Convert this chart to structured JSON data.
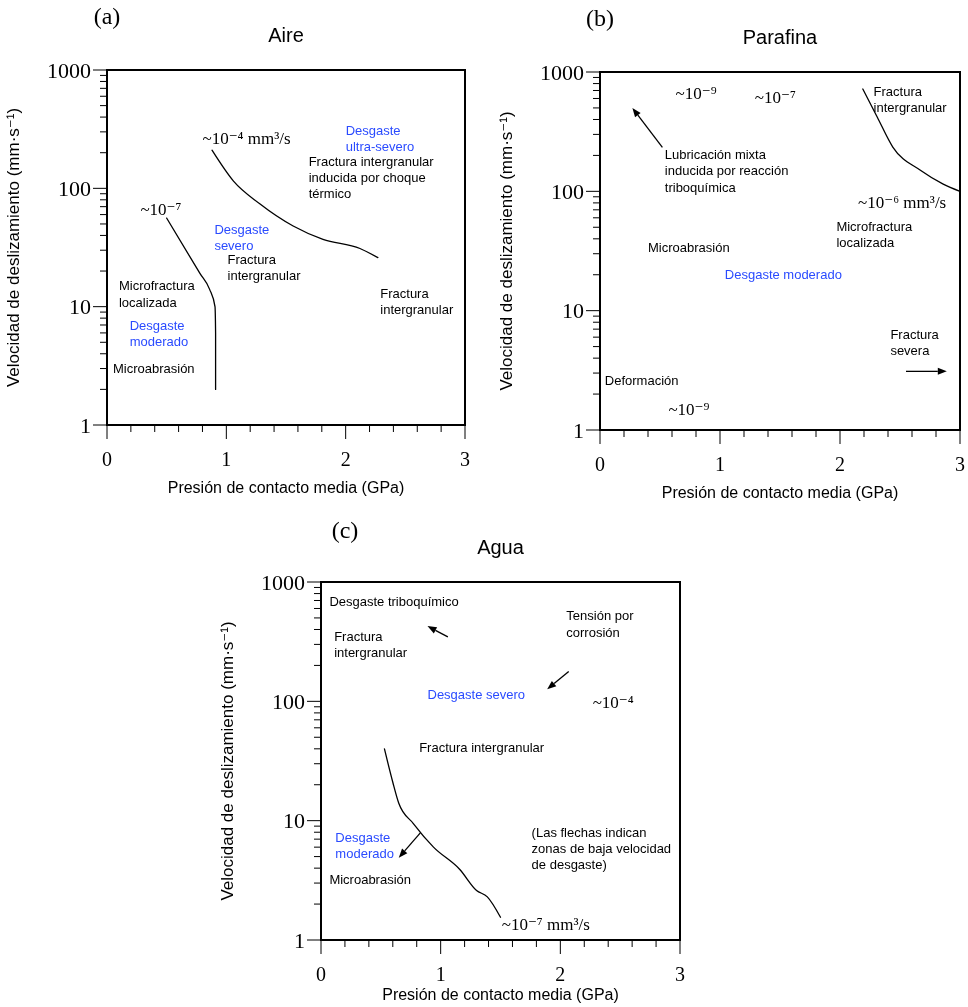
{
  "chart_data": [
    {
      "type": "line",
      "title": "Aire",
      "xlabel": "Presión de contacto media (GPa)",
      "ylabel": "Velocidad de deslizamiento (mm·s⁻¹)",
      "log": "y",
      "xlim": [
        0,
        3
      ],
      "ylim": [
        1,
        1000
      ],
      "xticks": [
        0,
        {
          "value": 0.2,
          "label": null
        },
        {
          "value": 0.4,
          "label": null
        },
        {
          "value": 0.6,
          "label": null
        },
        {
          "value": 0.8,
          "label": null
        },
        1,
        {
          "value": 1.2,
          "label": null
        },
        {
          "value": 1.4,
          "label": null
        },
        {
          "value": 1.6,
          "label": null
        },
        {
          "value": 1.8,
          "label": null
        },
        2,
        {
          "value": 2.2,
          "label": null
        },
        {
          "value": 2.4,
          "label": null
        },
        {
          "value": 2.6,
          "label": null
        },
        {
          "value": 2.8,
          "label": null
        },
        3
      ],
      "yticks": [
        1,
        {
          "value": 2,
          "label": null
        },
        {
          "value": 3,
          "label": null
        },
        {
          "value": 4,
          "label": null
        },
        {
          "value": 5,
          "label": null
        },
        {
          "value": 6,
          "label": null
        },
        {
          "value": 7,
          "label": null
        },
        {
          "value": 8,
          "label": null
        },
        {
          "value": 9,
          "label": null
        },
        10,
        {
          "value": 20,
          "label": null
        },
        {
          "value": 30,
          "label": null
        },
        {
          "value": 40,
          "label": null
        },
        {
          "value": 50,
          "label": null
        },
        {
          "value": 60,
          "label": null
        },
        {
          "value": 70,
          "label": null
        },
        {
          "value": 80,
          "label": null
        },
        {
          "value": 90,
          "label": null
        },
        100,
        {
          "value": 200,
          "label": null
        },
        {
          "value": 300,
          "label": null
        },
        {
          "value": 400,
          "label": null
        },
        {
          "value": 500,
          "label": null
        },
        {
          "value": 600,
          "label": null
        },
        {
          "value": 700,
          "label": null
        },
        {
          "value": 800,
          "label": null
        },
        {
          "value": 900,
          "label": null
        },
        1000
      ],
      "series": [
        {
          "name": "~10⁻⁷",
          "color": "#000000",
          "x": [
            0.5,
            0.78,
            0.86,
            0.905,
            0.91,
            0.91
          ],
          "values": [
            56,
            19,
            14,
            10,
            6,
            2
          ]
        },
        {
          "name": "~10⁻⁴ mm³/s",
          "color": "#000000",
          "x": [
            0.88,
            1.06,
            1.28,
            1.56,
            1.81,
            2.12,
            2.27
          ],
          "values": [
            210,
            115,
            74,
            48,
            37,
            31,
            26
          ]
        }
      ],
      "annotations": [
        "(a)",
        "Desgaste\nultra-severo",
        "Fractura intergranular\ninducida por choque\ntérmico",
        "Desgaste\nsevero",
        "Fractura\nintergranular",
        "Microfractura\nlocalizada",
        "Desgaste\nmoderado",
        "Microabrasión",
        "Fractura\nintergranular"
      ]
    },
    {
      "type": "line",
      "title": "Parafina",
      "xlabel": "Presión de contacto media (GPa)",
      "ylabel": "Velocidad de deslizamiento (mm·s⁻¹)",
      "log": "y",
      "xlim": [
        0,
        3
      ],
      "ylim": [
        1,
        1000
      ],
      "xticks": [
        0,
        {
          "value": 0.2,
          "label": null
        },
        {
          "value": 0.4,
          "label": null
        },
        {
          "value": 0.6,
          "label": null
        },
        {
          "value": 0.8,
          "label": null
        },
        1,
        {
          "value": 1.2,
          "label": null
        },
        {
          "value": 1.4,
          "label": null
        },
        {
          "value": 1.6,
          "label": null
        },
        {
          "value": 1.8,
          "label": null
        },
        2,
        {
          "value": 2.2,
          "label": null
        },
        {
          "value": 2.4,
          "label": null
        },
        {
          "value": 2.6,
          "label": null
        },
        {
          "value": 2.8,
          "label": null
        },
        3
      ],
      "yticks": [
        1,
        {
          "value": 2,
          "label": null
        },
        {
          "value": 3,
          "label": null
        },
        {
          "value": 4,
          "label": null
        },
        {
          "value": 5,
          "label": null
        },
        {
          "value": 6,
          "label": null
        },
        {
          "value": 7,
          "label": null
        },
        {
          "value": 8,
          "label": null
        },
        {
          "value": 9,
          "label": null
        },
        10,
        {
          "value": 20,
          "label": null
        },
        {
          "value": 30,
          "label": null
        },
        {
          "value": 40,
          "label": null
        },
        {
          "value": 50,
          "label": null
        },
        {
          "value": 60,
          "label": null
        },
        {
          "value": 70,
          "label": null
        },
        {
          "value": 80,
          "label": null
        },
        {
          "value": 90,
          "label": null
        },
        100,
        {
          "value": 200,
          "label": null
        },
        {
          "value": 300,
          "label": null
        },
        {
          "value": 400,
          "label": null
        },
        {
          "value": 500,
          "label": null
        },
        {
          "value": 600,
          "label": null
        },
        {
          "value": 700,
          "label": null
        },
        {
          "value": 800,
          "label": null
        },
        {
          "value": 900,
          "label": null
        },
        1000
      ],
      "series": [
        {
          "name": "~10⁻⁶ mm³/s",
          "color": "#000000",
          "x": [
            2.19,
            2.31,
            2.44,
            2.67,
            2.86,
            3.0
          ],
          "values": [
            720,
            420,
            235,
            150,
            115,
            100
          ]
        }
      ],
      "annotations": [
        "(b)",
        "~10⁻⁹",
        "~10⁻⁷",
        "Fractura\nintergranular",
        "Lubricación mixta\ninducida por reacción\ntriboquímica",
        "Microfractura\nlocalizada",
        "Microabrasión",
        "Desgaste moderado",
        "Fractura\nsevera",
        "Deformación",
        "~10⁻⁹"
      ]
    },
    {
      "type": "line",
      "title": "Agua",
      "xlabel": "Presión de contacto media (GPa)",
      "ylabel": "Velocidad de deslizamiento (mm·s⁻¹)",
      "log": "y",
      "xlim": [
        0,
        3
      ],
      "ylim": [
        1,
        1000
      ],
      "xticks": [
        0,
        {
          "value": 0.2,
          "label": null
        },
        {
          "value": 0.4,
          "label": null
        },
        {
          "value": 0.6,
          "label": null
        },
        {
          "value": 0.8,
          "label": null
        },
        1,
        {
          "value": 1.2,
          "label": null
        },
        {
          "value": 1.4,
          "label": null
        },
        {
          "value": 1.6,
          "label": null
        },
        {
          "value": 1.8,
          "label": null
        },
        2,
        {
          "value": 2.2,
          "label": null
        },
        {
          "value": 2.4,
          "label": null
        },
        {
          "value": 2.6,
          "label": null
        },
        {
          "value": 2.8,
          "label": null
        },
        3
      ],
      "yticks": [
        1,
        {
          "value": 2,
          "label": null
        },
        {
          "value": 3,
          "label": null
        },
        {
          "value": 4,
          "label": null
        },
        {
          "value": 5,
          "label": null
        },
        {
          "value": 6,
          "label": null
        },
        {
          "value": 7,
          "label": null
        },
        {
          "value": 8,
          "label": null
        },
        {
          "value": 9,
          "label": null
        },
        10,
        {
          "value": 20,
          "label": null
        },
        {
          "value": 30,
          "label": null
        },
        {
          "value": 40,
          "label": null
        },
        {
          "value": 50,
          "label": null
        },
        {
          "value": 60,
          "label": null
        },
        {
          "value": 70,
          "label": null
        },
        {
          "value": 80,
          "label": null
        },
        {
          "value": 90,
          "label": null
        },
        100,
        {
          "value": 200,
          "label": null
        },
        {
          "value": 300,
          "label": null
        },
        {
          "value": 400,
          "label": null
        },
        {
          "value": 500,
          "label": null
        },
        {
          "value": 600,
          "label": null
        },
        {
          "value": 700,
          "label": null
        },
        {
          "value": 800,
          "label": null
        },
        {
          "value": 900,
          "label": null
        },
        1000
      ],
      "series": [
        {
          "name": "~10⁻⁷ mm³/s",
          "color": "#000000",
          "x": [
            0.53,
            0.6,
            0.65,
            0.77,
            0.94,
            1.16,
            1.3,
            1.39,
            1.5
          ],
          "values": [
            40,
            21,
            14,
            9.5,
            6,
            3.9,
            2.6,
            2.3,
            1.55
          ]
        }
      ],
      "annotations": [
        "(c)",
        "Desgaste triboquímico",
        "Fractura\nintergranular",
        "Tensión por\ncorrosión",
        "Desgaste severo",
        "~10⁻⁴",
        "Fractura intergranular",
        "Desgaste\nmoderado",
        "Microabrasión",
        "(Las flechas indican\nzonas de baja velocidad\nde desgaste)"
      ]
    }
  ]
}
